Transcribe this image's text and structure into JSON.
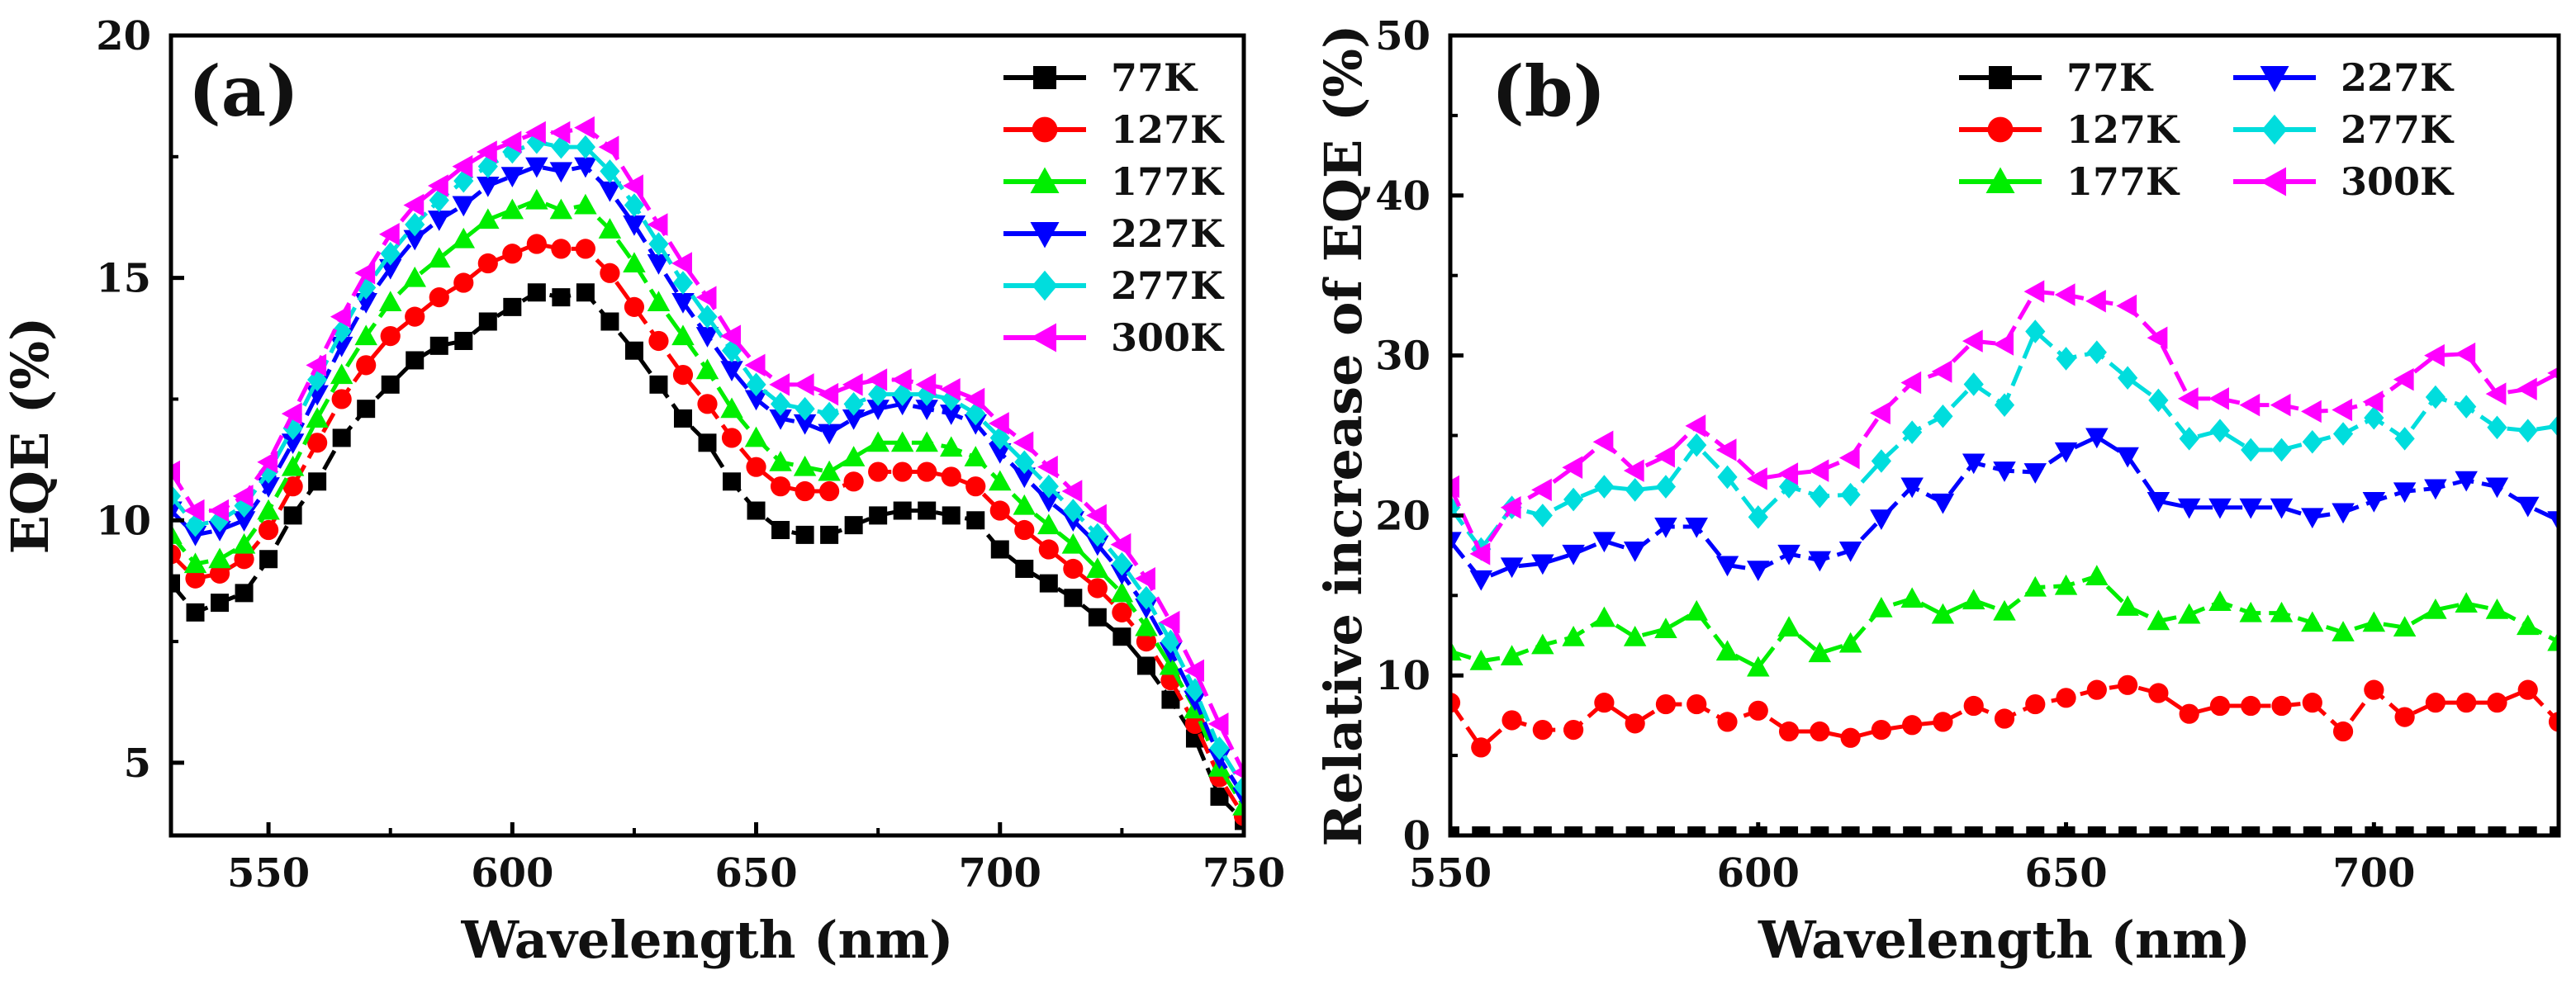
{
  "chart_data": [
    {
      "type": "line",
      "panel_label": "(a)",
      "xlabel": "Wavelength (nm)",
      "ylabel": "EQE (%)",
      "xlim": [
        530,
        750
      ],
      "ylim": [
        3.5,
        20
      ],
      "xticks": [
        550,
        600,
        650,
        700,
        750
      ],
      "yticks": [
        5,
        10,
        15,
        20
      ],
      "xtick_labels": [
        "550",
        "600",
        "650",
        "700",
        "750"
      ],
      "ytick_labels": [
        "5",
        "10",
        "15",
        "20"
      ],
      "legend_position": "top-right",
      "x": [
        530,
        535,
        540,
        545,
        550,
        555,
        560,
        565,
        570,
        575,
        580,
        585,
        590,
        595,
        600,
        605,
        610,
        615,
        620,
        625,
        630,
        635,
        640,
        645,
        650,
        655,
        660,
        665,
        670,
        675,
        680,
        685,
        690,
        695,
        700,
        705,
        710,
        715,
        720,
        725,
        730,
        735,
        740,
        745,
        750
      ],
      "series": [
        {
          "name": "77K",
          "color": "#000000",
          "marker": "square",
          "values": [
            8.7,
            8.1,
            8.3,
            8.5,
            9.2,
            10.1,
            10.8,
            11.7,
            12.3,
            12.8,
            13.3,
            13.6,
            13.7,
            14.1,
            14.4,
            14.7,
            14.6,
            14.7,
            14.1,
            13.5,
            12.8,
            12.1,
            11.6,
            10.8,
            10.2,
            9.8,
            9.7,
            9.7,
            9.9,
            10.1,
            10.2,
            10.2,
            10.1,
            10.0,
            9.4,
            9.0,
            8.7,
            8.4,
            8.0,
            7.6,
            7.0,
            6.3,
            5.5,
            4.3,
            3.8
          ]
        },
        {
          "name": "127K",
          "color": "#ff0000",
          "marker": "circle",
          "values": [
            9.3,
            8.8,
            8.9,
            9.2,
            9.8,
            10.7,
            11.6,
            12.5,
            13.2,
            13.8,
            14.2,
            14.6,
            14.9,
            15.3,
            15.5,
            15.7,
            15.6,
            15.6,
            15.1,
            14.4,
            13.7,
            13.0,
            12.4,
            11.7,
            11.1,
            10.7,
            10.6,
            10.6,
            10.8,
            11.0,
            11.0,
            11.0,
            10.9,
            10.7,
            10.2,
            9.8,
            9.4,
            9.0,
            8.6,
            8.1,
            7.5,
            6.7,
            5.8,
            4.7,
            3.9
          ]
        },
        {
          "name": "177K",
          "color": "#00ee00",
          "marker": "triangle-up",
          "values": [
            9.7,
            9.1,
            9.2,
            9.5,
            10.2,
            11.1,
            12.1,
            13.0,
            13.8,
            14.5,
            15.0,
            15.4,
            15.8,
            16.2,
            16.4,
            16.6,
            16.4,
            16.5,
            16.0,
            15.3,
            14.5,
            13.8,
            13.1,
            12.3,
            11.7,
            11.2,
            11.1,
            11.0,
            11.3,
            11.6,
            11.6,
            11.6,
            11.5,
            11.3,
            10.8,
            10.3,
            9.9,
            9.5,
            9.0,
            8.5,
            7.8,
            7.0,
            6.1,
            4.9,
            4.1
          ]
        },
        {
          "name": "227K",
          "color": "#0000ff",
          "marker": "triangle-down",
          "values": [
            10.2,
            9.7,
            9.8,
            10.0,
            10.7,
            11.6,
            12.6,
            13.6,
            14.5,
            15.2,
            15.8,
            16.2,
            16.5,
            16.9,
            17.1,
            17.3,
            17.2,
            17.3,
            16.8,
            16.1,
            15.3,
            14.5,
            13.8,
            13.1,
            12.5,
            12.1,
            12.0,
            11.8,
            12.1,
            12.3,
            12.4,
            12.3,
            12.2,
            12.0,
            11.4,
            10.9,
            10.4,
            10.0,
            9.5,
            8.9,
            8.2,
            7.3,
            6.3,
            5.1,
            4.3
          ]
        },
        {
          "name": "277K",
          "color": "#00dddd",
          "marker": "diamond",
          "values": [
            10.5,
            9.9,
            10.0,
            10.3,
            11.0,
            11.9,
            12.9,
            13.9,
            14.8,
            15.5,
            16.1,
            16.6,
            17.0,
            17.3,
            17.6,
            17.8,
            17.7,
            17.7,
            17.2,
            16.5,
            15.7,
            14.9,
            14.2,
            13.5,
            12.8,
            12.4,
            12.3,
            12.2,
            12.4,
            12.6,
            12.6,
            12.6,
            12.5,
            12.2,
            11.7,
            11.2,
            10.7,
            10.2,
            9.7,
            9.1,
            8.4,
            7.5,
            6.5,
            5.3,
            4.5
          ]
        },
        {
          "name": "300K",
          "color": "#ff00ff",
          "marker": "triangle-left",
          "values": [
            11.0,
            10.2,
            10.2,
            10.5,
            11.2,
            12.2,
            13.2,
            14.2,
            15.1,
            15.9,
            16.5,
            16.9,
            17.3,
            17.6,
            17.8,
            18.0,
            18.0,
            18.1,
            17.7,
            16.9,
            16.1,
            15.3,
            14.6,
            13.8,
            13.2,
            12.8,
            12.8,
            12.6,
            12.8,
            12.9,
            12.9,
            12.8,
            12.7,
            12.5,
            12.0,
            11.6,
            11.1,
            10.6,
            10.1,
            9.5,
            8.8,
            7.9,
            6.9,
            5.8,
            4.8
          ]
        }
      ]
    },
    {
      "type": "line",
      "panel_label": "(b)",
      "xlabel": "Wavelength (nm)",
      "ylabel": "Relative increase of EQE (%)",
      "xlim": [
        550,
        730
      ],
      "ylim": [
        0,
        50
      ],
      "xticks": [
        550,
        600,
        650,
        700
      ],
      "yticks": [
        0,
        10,
        20,
        30,
        40,
        50
      ],
      "xtick_labels": [
        "550",
        "600",
        "650",
        "700"
      ],
      "ytick_labels": [
        "0",
        "10",
        "20",
        "30",
        "40",
        "50"
      ],
      "legend_position": "top-right",
      "x": [
        550,
        555,
        560,
        565,
        570,
        575,
        580,
        585,
        590,
        595,
        600,
        605,
        610,
        615,
        620,
        625,
        630,
        635,
        640,
        645,
        650,
        655,
        660,
        665,
        670,
        675,
        680,
        685,
        690,
        695,
        700,
        705,
        710,
        715,
        720,
        725,
        730
      ],
      "series": [
        {
          "name": "77K",
          "color": "#000000",
          "marker": "square",
          "values": [
            0,
            0,
            0,
            0,
            0,
            0,
            0,
            0,
            0,
            0,
            0,
            0,
            0,
            0,
            0,
            0,
            0,
            0,
            0,
            0,
            0,
            0,
            0,
            0,
            0,
            0,
            0,
            0,
            0,
            0,
            0,
            0,
            0,
            0,
            0,
            0,
            0
          ]
        },
        {
          "name": "127K",
          "color": "#ff0000",
          "marker": "circle",
          "values": [
            8.3,
            5.5,
            7.2,
            6.6,
            6.6,
            8.3,
            7.0,
            8.2,
            8.2,
            7.1,
            7.8,
            6.5,
            6.5,
            6.1,
            6.6,
            6.9,
            7.1,
            8.1,
            7.3,
            8.2,
            8.6,
            9.1,
            9.4,
            8.9,
            7.6,
            8.1,
            8.1,
            8.1,
            8.3,
            6.5,
            9.1,
            7.4,
            8.3,
            8.3,
            8.3,
            9.1,
            7.1
          ]
        },
        {
          "name": "177K",
          "color": "#00ee00",
          "marker": "triangle-up",
          "values": [
            11.5,
            10.9,
            11.2,
            11.9,
            12.4,
            13.6,
            12.4,
            12.9,
            14.0,
            11.5,
            10.5,
            13.0,
            11.4,
            12.0,
            14.2,
            14.8,
            13.8,
            14.7,
            14.0,
            15.5,
            15.6,
            16.2,
            14.3,
            13.4,
            13.8,
            14.6,
            13.9,
            13.9,
            13.3,
            12.7,
            13.3,
            13.0,
            14.1,
            14.5,
            14.1,
            13.1,
            12.1
          ]
        },
        {
          "name": "227K",
          "color": "#0000ff",
          "marker": "triangle-down",
          "values": [
            18.4,
            16.0,
            16.8,
            17.0,
            17.6,
            18.4,
            17.8,
            19.3,
            19.3,
            16.9,
            16.6,
            17.6,
            17.2,
            17.8,
            19.8,
            21.8,
            20.8,
            23.3,
            22.8,
            22.7,
            24.0,
            24.9,
            23.7,
            20.9,
            20.5,
            20.5,
            20.5,
            20.5,
            19.9,
            20.2,
            20.9,
            21.5,
            21.7,
            22.2,
            21.8,
            20.6,
            19.7
          ]
        },
        {
          "name": "277K",
          "color": "#00dddd",
          "marker": "diamond",
          "values": [
            20.5,
            17.9,
            20.5,
            20.0,
            21.0,
            21.8,
            21.6,
            21.8,
            24.4,
            22.4,
            19.9,
            21.8,
            21.2,
            21.3,
            23.4,
            25.2,
            26.2,
            28.2,
            26.9,
            31.5,
            29.8,
            30.2,
            28.6,
            27.2,
            24.8,
            25.3,
            24.1,
            24.1,
            24.6,
            25.1,
            26.1,
            24.8,
            27.4,
            26.8,
            25.5,
            25.3,
            25.6
          ]
        },
        {
          "name": "300K",
          "color": "#ff00ff",
          "marker": "triangle-left",
          "values": [
            21.8,
            17.6,
            20.5,
            21.6,
            23.0,
            24.6,
            22.8,
            23.7,
            25.6,
            24.1,
            22.3,
            22.6,
            22.8,
            23.6,
            26.4,
            28.3,
            29.0,
            30.9,
            30.7,
            34.0,
            33.8,
            33.4,
            33.1,
            31.1,
            27.3,
            27.3,
            26.9,
            26.9,
            26.5,
            26.6,
            27.1,
            28.5,
            30.0,
            30.1,
            27.6,
            27.9,
            28.9
          ]
        }
      ]
    }
  ]
}
